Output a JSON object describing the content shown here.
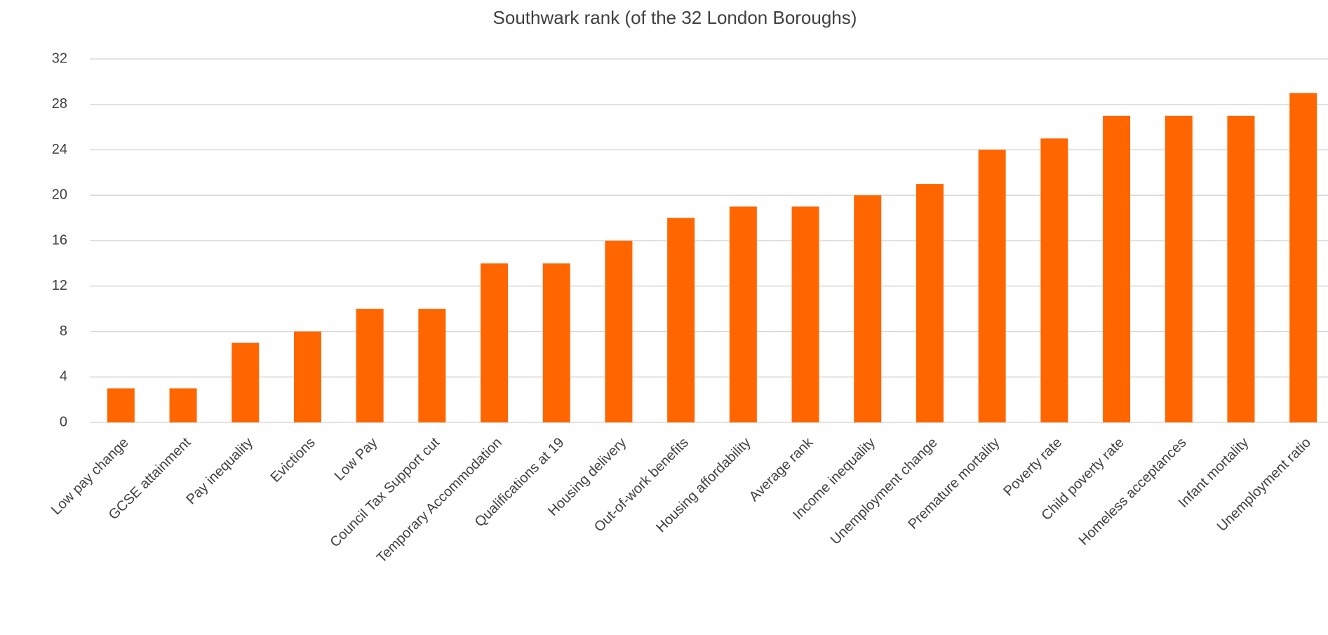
{
  "chart_data": {
    "type": "bar",
    "title": "Southwark rank (of the 32 London Boroughs)",
    "categories": [
      "Low pay change",
      "GCSE attainment",
      "Pay inequality",
      "Evictions",
      "Low Pay",
      "Council Tax Support cut",
      "Temporary Accommodation",
      "Qualifications at 19",
      "Housing delivery",
      "Out-of-work benefits",
      "Housing affordability",
      "Average rank",
      "Income inequality",
      "Unemployment change",
      "Premature mortality",
      "Poverty rate",
      "Child poverty rate",
      "Homeless acceptances",
      "Infant mortality",
      "Unemployment ratio"
    ],
    "values": [
      3,
      3,
      7,
      8,
      10,
      10,
      14,
      14,
      16,
      18,
      19,
      19,
      20,
      21,
      24,
      25,
      27,
      27,
      27,
      29
    ],
    "color": "#ff6600",
    "ylim": [
      0,
      32
    ],
    "yticks": [
      0,
      4,
      8,
      12,
      16,
      20,
      24,
      28,
      32
    ],
    "grid": true
  }
}
